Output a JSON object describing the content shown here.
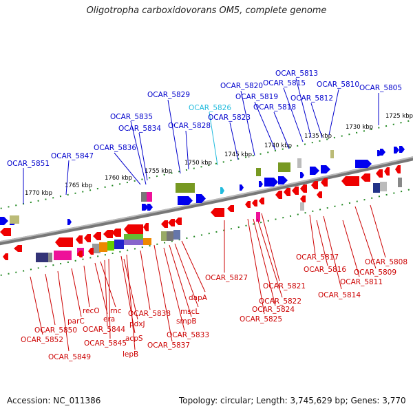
{
  "title": "Oligotropha carboxidovorans OM5, complete genome",
  "footer": {
    "accession": "Accession: NC_011386",
    "summary": "Topology: circular; Length: 3,745,629 bp; Genes: 3,770"
  },
  "colors": {
    "forward_label": "#0000cc",
    "reverse_label": "#cc0000",
    "highlight_label": "#22bbdd",
    "forward_gene": "#0000ee",
    "reverse_gene": "#ee0000",
    "backbone": "#888888",
    "ticks": "#228822"
  },
  "ticks": [
    "1770 kbp",
    "1765 kbp",
    "1760 kbp",
    "1755 kbp",
    "1750 kbp",
    "1745 kbp",
    "1740 kbp",
    "1735 kbp",
    "1730 kbp",
    "1725 kbp"
  ],
  "forward_labels": [
    "OCAR_5851",
    "OCAR_5847",
    "OCAR_5836",
    "OCAR_5835",
    "OCAR_5834",
    "OCAR_5829",
    "OCAR_5828",
    "OCAR_5826",
    "OCAR_5823",
    "OCAR_5820",
    "OCAR_5819",
    "OCAR_5818",
    "OCAR_5815",
    "OCAR_5813",
    "OCAR_5812",
    "OCAR_5810",
    "OCAR_5805"
  ],
  "reverse_labels": [
    "OCAR_5850",
    "OCAR_5852",
    "OCAR_5849",
    "parC",
    "recO",
    "era",
    "rnc",
    "OCAR_5844",
    "OCAR_5845",
    "acpS",
    "lepB",
    "pdxJ",
    "OCAR_5838",
    "OCAR_5837",
    "OCAR_5833",
    "smpB",
    "mscL",
    "dapA",
    "OCAR_5827",
    "OCAR_5825",
    "OCAR_5824",
    "OCAR_5822",
    "OCAR_5821",
    "OCAR_5817",
    "OCAR_5816",
    "OCAR_5814",
    "OCAR_5811",
    "OCAR_5809",
    "OCAR_5808"
  ]
}
